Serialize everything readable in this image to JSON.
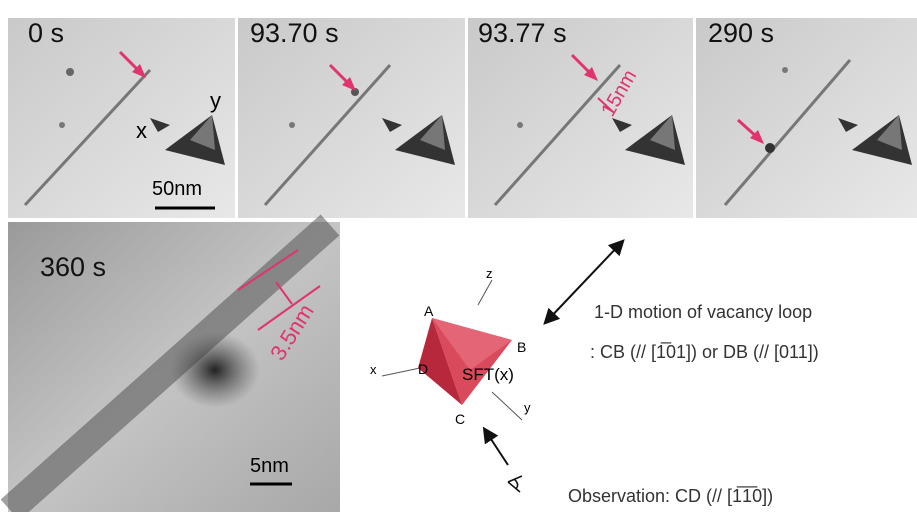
{
  "panels": [
    {
      "time": "0 s",
      "labels": [
        "x",
        "y"
      ],
      "scale_bar": "50nm"
    },
    {
      "time": "93.70 s"
    },
    {
      "time": "93.77 s",
      "measure": "15nm"
    },
    {
      "time": "290 s"
    },
    {
      "time": "360 s",
      "measure": "3.5nm",
      "scale_bar": "5nm"
    }
  ],
  "diagram": {
    "axes": [
      "z",
      "x",
      "y"
    ],
    "vertices": [
      "A",
      "B",
      "D",
      "C"
    ],
    "label": "SFT(x)",
    "motion": [
      "1-D motion of vacancy loop",
      ": CB (// [1̅01]) or DB (// [011])"
    ],
    "observation": "Observation: CD (// [1̅1̅0])"
  }
}
